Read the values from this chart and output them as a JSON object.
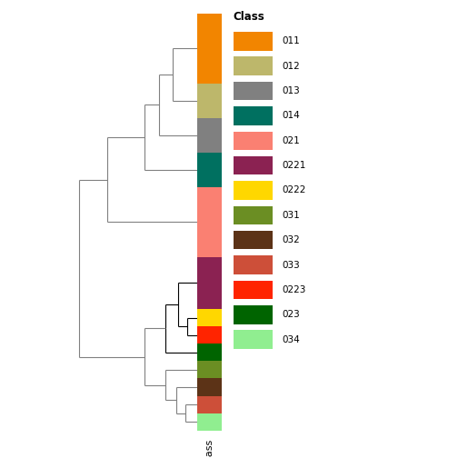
{
  "leaf_order": [
    "011",
    "012",
    "013",
    "014",
    "021",
    "0221",
    "0222",
    "0223",
    "023",
    "031",
    "032",
    "033",
    "034"
  ],
  "colors_map": {
    "011": "#F28500",
    "012": "#BDB76B",
    "013": "#808080",
    "014": "#007060",
    "021": "#FA8072",
    "0221": "#8B2252",
    "0222": "#FFD700",
    "0223": "#FF2400",
    "023": "#006400",
    "031": "#6B8E23",
    "032": "#5C3317",
    "033": "#CD4F39",
    "034": "#90EE90"
  },
  "heights": {
    "011": 2.0,
    "012": 1.0,
    "013": 1.0,
    "014": 1.0,
    "021": 2.0,
    "0221": 1.5,
    "0222": 0.5,
    "0223": 0.5,
    "023": 0.5,
    "031": 0.5,
    "032": 0.5,
    "033": 0.5,
    "034": 0.5
  },
  "legend_entries": [
    [
      "011",
      "#F28500"
    ],
    [
      "012",
      "#BDB76B"
    ],
    [
      "013",
      "#808080"
    ],
    [
      "014",
      "#007060"
    ],
    [
      "021",
      "#FA8072"
    ],
    [
      "0221",
      "#8B2252"
    ],
    [
      "0222",
      "#FFD700"
    ],
    [
      "031",
      "#6B8E23"
    ],
    [
      "032",
      "#5C3317"
    ],
    [
      "033",
      "#CD4F39"
    ],
    [
      "0223",
      "#FF2400"
    ],
    [
      "023",
      "#006400"
    ],
    [
      "034",
      "#90EE90"
    ]
  ],
  "dgray": "#808080",
  "dblack": "#000000",
  "background": "#FFFFFF"
}
